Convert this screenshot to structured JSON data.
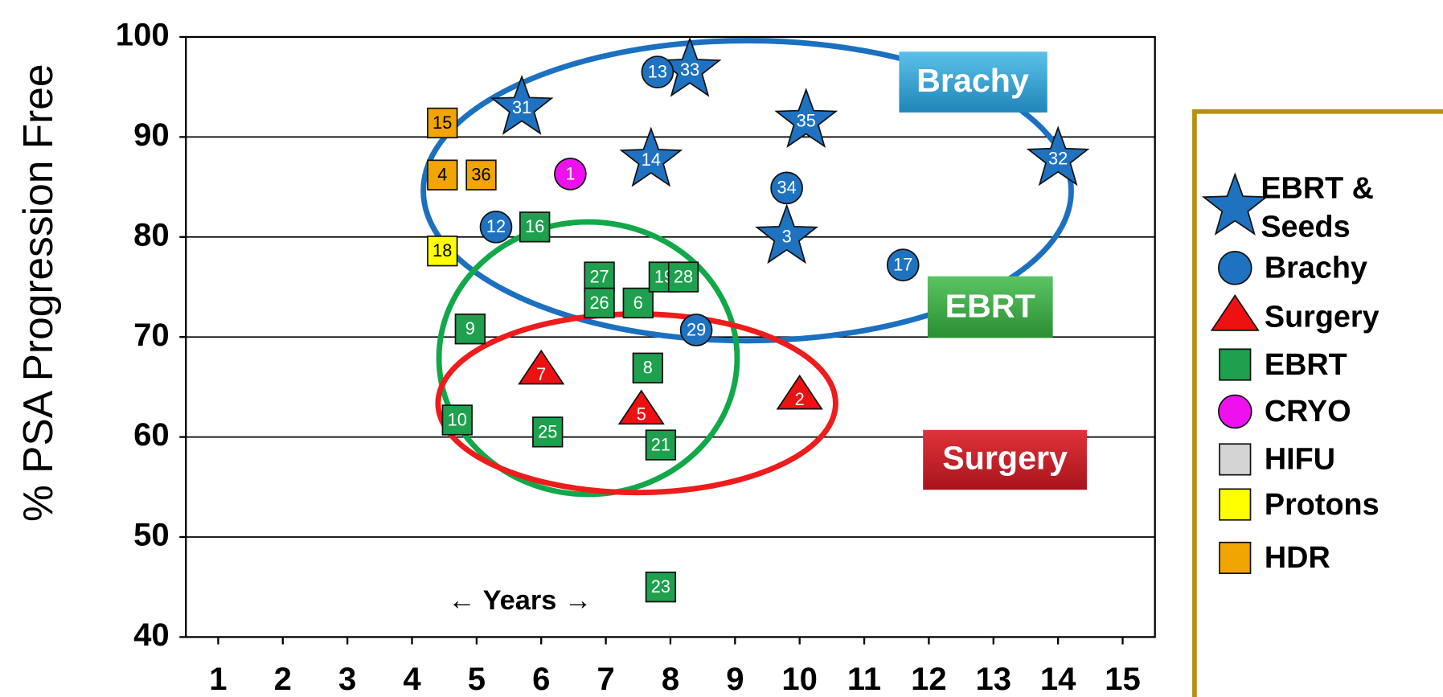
{
  "chart_data": {
    "type": "scatter",
    "y_label": "% PSA Progression Free",
    "x_annotation": "← Years →",
    "annotations": [
      "Brachy",
      "EBRT",
      "Surgery"
    ],
    "xlim": [
      0.5,
      15.5
    ],
    "xticks": [
      1,
      2,
      3,
      4,
      5,
      6,
      7,
      8,
      9,
      10,
      11,
      12,
      13,
      14,
      15
    ],
    "ylim": [
      40,
      100
    ],
    "yticks": [
      40,
      50,
      60,
      70,
      80,
      90,
      100
    ],
    "grid": true,
    "series": [
      {
        "name": "EBRT & Seeds",
        "marker": "star",
        "color": "#1f72c0",
        "x": [
          5.7,
          8.3,
          7.7,
          10.1,
          9.8,
          14.0
        ],
        "values": [
          92.9,
          96.7,
          87.7,
          91.6,
          80.0,
          87.8
        ],
        "labels": [
          "31",
          "33",
          "14",
          "35",
          "3",
          "32"
        ]
      },
      {
        "name": "Brachy",
        "marker": "circle",
        "color": "#1f72c0",
        "x": [
          7.8,
          5.3,
          9.8,
          11.6,
          8.4
        ],
        "values": [
          96.5,
          81.0,
          84.9,
          77.2,
          70.7
        ],
        "labels": [
          "13",
          "12",
          "34",
          "17",
          "29"
        ]
      },
      {
        "name": "Surgery",
        "marker": "triangle",
        "color": "#ee1111",
        "x": [
          6.0,
          7.55,
          10.0
        ],
        "values": [
          66.6,
          62.6,
          64.1
        ],
        "labels": [
          "7",
          "5",
          "2"
        ]
      },
      {
        "name": "EBRT",
        "marker": "square",
        "color": "#1ea04e",
        "x": [
          5.9,
          6.9,
          6.9,
          7.5,
          7.9,
          8.2,
          4.9,
          7.65,
          4.7,
          6.1,
          7.85,
          7.85
        ],
        "values": [
          81.0,
          76.0,
          73.4,
          73.4,
          76.0,
          76.0,
          70.8,
          66.9,
          61.7,
          60.5,
          59.2,
          45.0
        ],
        "labels": [
          "16",
          "27",
          "26",
          "6",
          "19",
          "28",
          "9",
          "8",
          "10",
          "25",
          "21",
          "23"
        ]
      },
      {
        "name": "CRYO",
        "marker": "circle",
        "color": "#ee11ee",
        "x": [
          6.45
        ],
        "values": [
          86.3
        ],
        "labels": [
          "1"
        ]
      },
      {
        "name": "HIFU",
        "marker": "square",
        "color": "#d4d4d4",
        "x": [],
        "values": [],
        "labels": []
      },
      {
        "name": "Protons",
        "marker": "square",
        "color": "#ffff00",
        "x": [
          4.47
        ],
        "values": [
          78.6
        ],
        "labels": [
          "18"
        ]
      },
      {
        "name": "HDR",
        "marker": "square",
        "color": "#f0a500",
        "x": [
          4.47,
          4.47,
          5.07
        ],
        "values": [
          91.4,
          86.2,
          86.2
        ],
        "labels": [
          "15",
          "4",
          "36"
        ]
      }
    ]
  }
}
